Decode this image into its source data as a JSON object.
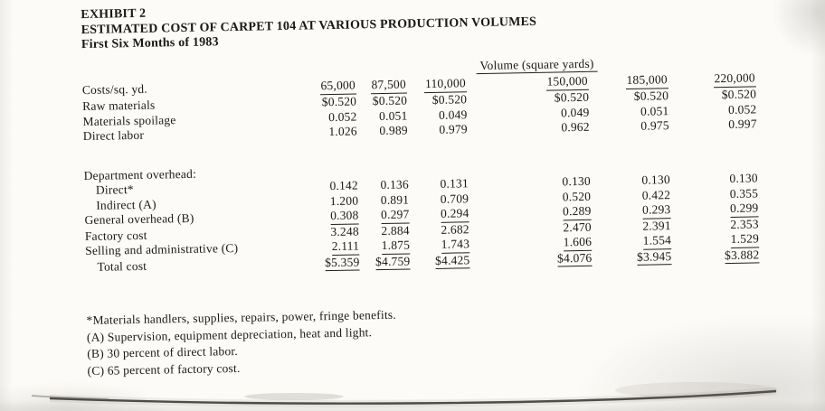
{
  "document": {
    "exhibit": "EXHIBIT 2",
    "title": "ESTIMATED COST OF CARPET 104 AT VARIOUS PRODUCTION VOLUMES",
    "subtitle": "First Six Months of 1983"
  },
  "table": {
    "volume_header": "Volume (square yards)",
    "stub_header": "Costs/sq. yd.",
    "columns": [
      "65,000",
      "87,500",
      "110,000",
      "150,000",
      "185,000",
      "220,000"
    ],
    "rows": [
      {
        "label": "Raw materials",
        "values": [
          "$0.520",
          "$0.520",
          "$0.520",
          "$0.520",
          "$0.520",
          "$0.520"
        ]
      },
      {
        "label": "Materials spoilage",
        "values": [
          "0.052",
          "0.051",
          "0.049",
          "0.049",
          "0.051",
          "0.052"
        ]
      },
      {
        "label": "Direct labor",
        "values": [
          "1.026",
          "0.989",
          "0.979",
          "0.962",
          "0.975",
          "0.997"
        ],
        "gap_after": true
      },
      {
        "label": "Department overhead:",
        "values": [
          "",
          "",
          "",
          "",
          "",
          ""
        ]
      },
      {
        "label": "Direct*",
        "values": [
          "0.142",
          "0.136",
          "0.131",
          "0.130",
          "0.130",
          "0.130"
        ],
        "indent": true
      },
      {
        "label": "Indirect (A)",
        "values": [
          "1.200",
          "0.891",
          "0.709",
          "0.520",
          "0.422",
          "0.355"
        ],
        "indent": true
      },
      {
        "label": "General overhead (B)",
        "values": [
          "0.308",
          "0.297",
          "0.294",
          "0.289",
          "0.293",
          "0.299"
        ],
        "underline": true
      },
      {
        "label": "Factory cost",
        "values": [
          "3.248",
          "2.884",
          "2.682",
          "2.470",
          "2.391",
          "2.353"
        ]
      },
      {
        "label": "Selling and administrative (C)",
        "values": [
          "2.111",
          "1.875",
          "1.743",
          "1.606",
          "1.554",
          "1.529"
        ],
        "underline": true
      },
      {
        "label": "Total cost",
        "values": [
          "$5.359",
          "$4.759",
          "$4.425",
          "$4.076",
          "$3.945",
          "$3.882"
        ],
        "underline": true,
        "indent": true
      }
    ]
  },
  "footnotes": [
    "*Materials handlers, supplies, repairs, power, fringe benefits.",
    "(A) Supervision, equipment depreciation, heat and light.",
    "(B) 30 percent of direct labor.",
    "(C) 65 percent of factory cost."
  ]
}
